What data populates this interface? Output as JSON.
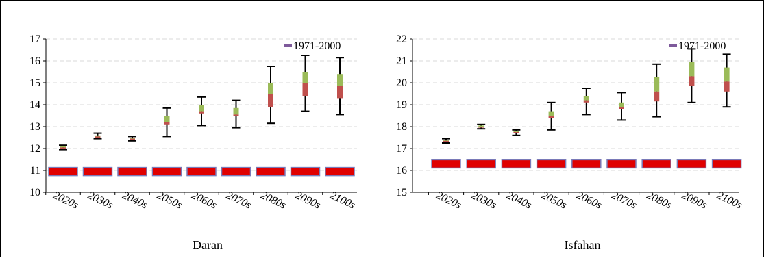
{
  "colors": {
    "baseline_fill": "#e00000",
    "baseline_stroke": "#7a7ab8",
    "box_upper": "#9bbb59",
    "box_lower": "#c0504d",
    "whisker": "#000000",
    "legend_marker": "#7e5a9b",
    "grid": "#d9d9d9"
  },
  "chart_data": [
    {
      "type": "box",
      "title": "Daran",
      "categories": [
        "2020s",
        "2030s",
        "2040s",
        "2050s",
        "2060s",
        "2070s",
        "2080s",
        "2090s",
        "2100s"
      ],
      "ylim": [
        10,
        17
      ],
      "yticks": [
        10,
        11,
        12,
        13,
        14,
        15,
        16,
        17
      ],
      "grid": true,
      "legend": {
        "label": "1971-2000",
        "position": "top-right"
      },
      "baseline": {
        "name": "1971-2000",
        "value": 10.95
      },
      "boxes": [
        {
          "min": 11.95,
          "q1": 12.0,
          "median": 12.05,
          "q3": 12.1,
          "max": 12.15
        },
        {
          "min": 12.45,
          "q1": 12.5,
          "median": 12.55,
          "q3": 12.6,
          "max": 12.7
        },
        {
          "min": 12.35,
          "q1": 12.4,
          "median": 12.45,
          "q3": 12.5,
          "max": 12.55
        },
        {
          "min": 12.55,
          "q1": 13.1,
          "median": 13.2,
          "q3": 13.5,
          "max": 13.85
        },
        {
          "min": 13.05,
          "q1": 13.6,
          "median": 13.7,
          "q3": 14.0,
          "max": 14.35
        },
        {
          "min": 12.95,
          "q1": 13.5,
          "median": 13.55,
          "q3": 13.85,
          "max": 14.2
        },
        {
          "min": 13.15,
          "q1": 13.9,
          "median": 14.5,
          "q3": 15.0,
          "max": 15.75
        },
        {
          "min": 13.7,
          "q1": 14.4,
          "median": 15.0,
          "q3": 15.5,
          "max": 16.25
        },
        {
          "min": 13.55,
          "q1": 14.3,
          "median": 14.85,
          "q3": 15.4,
          "max": 16.15
        }
      ]
    },
    {
      "type": "box",
      "title": "Isfahan",
      "categories": [
        "2020s",
        "2030s",
        "2040s",
        "2050s",
        "2060s",
        "2070s",
        "2080s",
        "2090s",
        "2100s"
      ],
      "ylim": [
        15,
        22
      ],
      "yticks": [
        15,
        16,
        17,
        18,
        19,
        20,
        21,
        22
      ],
      "grid": true,
      "legend": {
        "label": "1971-2000",
        "position": "top-right"
      },
      "baseline": {
        "name": "1971-2000",
        "value": 16.3
      },
      "boxes": [
        {
          "min": 17.25,
          "q1": 17.3,
          "median": 17.35,
          "q3": 17.4,
          "max": 17.45
        },
        {
          "min": 17.9,
          "q1": 17.95,
          "median": 18.0,
          "q3": 18.05,
          "max": 18.1
        },
        {
          "min": 17.6,
          "q1": 17.7,
          "median": 17.75,
          "q3": 17.8,
          "max": 17.85
        },
        {
          "min": 17.85,
          "q1": 18.4,
          "median": 18.5,
          "q3": 18.7,
          "max": 19.1
        },
        {
          "min": 18.55,
          "q1": 19.1,
          "median": 19.2,
          "q3": 19.4,
          "max": 19.75
        },
        {
          "min": 18.3,
          "q1": 18.8,
          "median": 18.9,
          "q3": 19.1,
          "max": 19.55
        },
        {
          "min": 18.45,
          "q1": 19.15,
          "median": 19.6,
          "q3": 20.25,
          "max": 20.85
        },
        {
          "min": 19.1,
          "q1": 19.85,
          "median": 20.3,
          "q3": 20.95,
          "max": 21.55
        },
        {
          "min": 18.9,
          "q1": 19.6,
          "median": 20.05,
          "q3": 20.7,
          "max": 21.3
        }
      ]
    }
  ]
}
